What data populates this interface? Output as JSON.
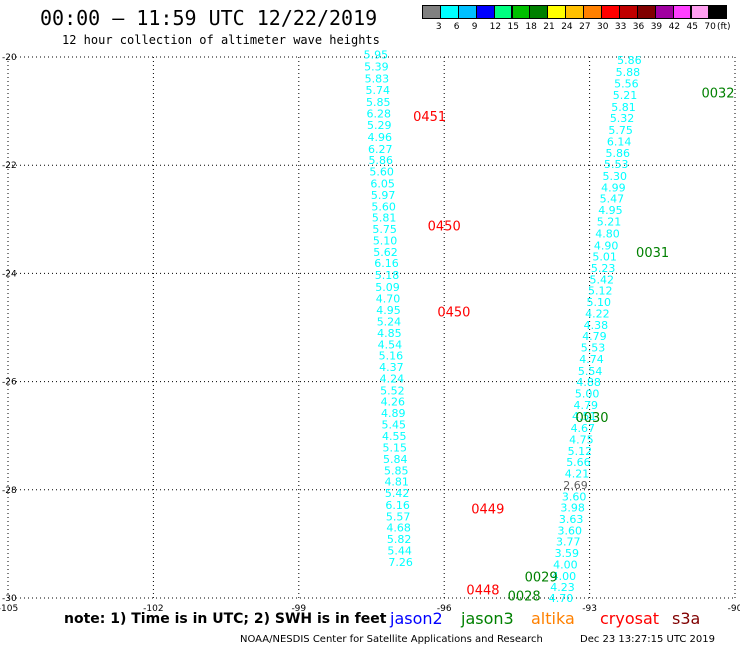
{
  "header": {
    "title": "00:00 – 11:59 UTC 12/22/2019",
    "subtitle": "12 hour collection of altimeter wave heights"
  },
  "color_scale": {
    "labels": [
      "3",
      "6",
      "9",
      "12",
      "15",
      "18",
      "21",
      "24",
      "27",
      "30",
      "33",
      "36",
      "39",
      "42",
      "45",
      "70"
    ],
    "unit": "(ft)",
    "colors": [
      "#808080",
      "#00ffff",
      "#00c0ff",
      "#0000ff",
      "#00ff80",
      "#00c000",
      "#008000",
      "#ffff00",
      "#ffc000",
      "#ff8000",
      "#ff0000",
      "#c00000",
      "#800000",
      "#a000a0",
      "#ff40ff",
      "#ff9ef0",
      "#000000"
    ]
  },
  "footer": {
    "note": "note: 1) Time is in UTC; 2) SWH is in feet",
    "satellites": [
      {
        "name": "jason2",
        "color": "#0000ff"
      },
      {
        "name": "jason3",
        "color": "#008000"
      },
      {
        "name": "altika",
        "color": "#ff8000"
      },
      {
        "name": "cryosat",
        "color": "#ff0000"
      },
      {
        "name": "s3a",
        "color": "#800000"
      }
    ],
    "credit": "NOAA/NESDIS Center for Satellite Applications and Research",
    "stamp": "Dec 23 13:27:15 UTC 2019"
  },
  "chart_data": {
    "type": "scatter",
    "xlim": [
      -105,
      -90
    ],
    "ylim": [
      -30,
      -20
    ],
    "x_ticks": [
      -105,
      -102,
      -99,
      -96,
      -93,
      -90
    ],
    "y_ticks": [
      -20,
      -22,
      -24,
      -26,
      -28,
      -30
    ],
    "x_tick_labels": [
      "-105",
      "-102",
      "-99",
      "-96",
      "-93",
      "-90"
    ],
    "y_tick_labels": [
      "-20",
      "-22",
      "-24",
      "-26",
      "-28",
      "-30"
    ],
    "grid": "dotted",
    "tracks": [
      {
        "color": "#00ffff",
        "points": [
          {
            "lon": -97.41,
            "lat": -19.95,
            "v": "5.95"
          },
          {
            "lon": -97.4,
            "lat": -20.18,
            "v": "5.39"
          },
          {
            "lon": -97.39,
            "lat": -20.4,
            "v": "5.83"
          },
          {
            "lon": -97.37,
            "lat": -20.61,
            "v": "5.74"
          },
          {
            "lon": -97.36,
            "lat": -20.83,
            "v": "5.85"
          },
          {
            "lon": -97.35,
            "lat": -21.04,
            "v": "6.28"
          },
          {
            "lon": -97.34,
            "lat": -21.26,
            "v": "5.29"
          },
          {
            "lon": -97.33,
            "lat": -21.48,
            "v": "4.96"
          },
          {
            "lon": -97.32,
            "lat": -21.7,
            "v": "6.27"
          },
          {
            "lon": -97.31,
            "lat": -21.9,
            "v": "5.86"
          },
          {
            "lon": -97.29,
            "lat": -22.12,
            "v": "5.60"
          },
          {
            "lon": -97.27,
            "lat": -22.34,
            "v": "6.05"
          },
          {
            "lon": -97.26,
            "lat": -22.55,
            "v": "5.97"
          },
          {
            "lon": -97.25,
            "lat": -22.76,
            "v": "5.60"
          },
          {
            "lon": -97.24,
            "lat": -22.97,
            "v": "5.81"
          },
          {
            "lon": -97.23,
            "lat": -23.18,
            "v": "5.75"
          },
          {
            "lon": -97.22,
            "lat": -23.39,
            "v": "5.10"
          },
          {
            "lon": -97.21,
            "lat": -23.6,
            "v": "5.62"
          },
          {
            "lon": -97.19,
            "lat": -23.81,
            "v": "6.16"
          },
          {
            "lon": -97.18,
            "lat": -24.03,
            "v": "5.18"
          },
          {
            "lon": -97.17,
            "lat": -24.25,
            "v": "5.09"
          },
          {
            "lon": -97.16,
            "lat": -24.46,
            "v": "4.70"
          },
          {
            "lon": -97.15,
            "lat": -24.68,
            "v": "4.95"
          },
          {
            "lon": -97.14,
            "lat": -24.89,
            "v": "5.24"
          },
          {
            "lon": -97.13,
            "lat": -25.1,
            "v": "4.85"
          },
          {
            "lon": -97.12,
            "lat": -25.31,
            "v": "4.54"
          },
          {
            "lon": -97.1,
            "lat": -25.52,
            "v": "5.16"
          },
          {
            "lon": -97.09,
            "lat": -25.73,
            "v": "4.37"
          },
          {
            "lon": -97.08,
            "lat": -25.94,
            "v": "4.24"
          },
          {
            "lon": -97.07,
            "lat": -26.16,
            "v": "5.52"
          },
          {
            "lon": -97.06,
            "lat": -26.37,
            "v": "4.26"
          },
          {
            "lon": -97.05,
            "lat": -26.58,
            "v": "4.89"
          },
          {
            "lon": -97.04,
            "lat": -26.79,
            "v": "5.45"
          },
          {
            "lon": -97.03,
            "lat": -27.01,
            "v": "4.55"
          },
          {
            "lon": -97.02,
            "lat": -27.22,
            "v": "5.15"
          },
          {
            "lon": -97.01,
            "lat": -27.43,
            "v": "5.84"
          },
          {
            "lon": -96.99,
            "lat": -27.64,
            "v": "5.85"
          },
          {
            "lon": -96.98,
            "lat": -27.85,
            "v": "4.81"
          },
          {
            "lon": -96.97,
            "lat": -28.06,
            "v": "5.42"
          },
          {
            "lon": -96.96,
            "lat": -28.28,
            "v": "6.16"
          },
          {
            "lon": -96.95,
            "lat": -28.49,
            "v": "5.57"
          },
          {
            "lon": -96.94,
            "lat": -28.7,
            "v": "4.68"
          },
          {
            "lon": -96.93,
            "lat": -28.91,
            "v": "5.82"
          },
          {
            "lon": -96.92,
            "lat": -29.12,
            "v": "5.44"
          },
          {
            "lon": -96.9,
            "lat": -29.33,
            "v": "7.26"
          }
        ]
      },
      {
        "color": "#00ffff",
        "points": [
          {
            "lon": -92.18,
            "lat": -20.06,
            "v": "5.86"
          },
          {
            "lon": -92.21,
            "lat": -20.28,
            "v": "5.88"
          },
          {
            "lon": -92.24,
            "lat": -20.49,
            "v": "5.56"
          },
          {
            "lon": -92.27,
            "lat": -20.7,
            "v": "5.21"
          },
          {
            "lon": -92.3,
            "lat": -20.92,
            "v": "5.81"
          },
          {
            "lon": -92.33,
            "lat": -21.13,
            "v": "5.32"
          },
          {
            "lon": -92.36,
            "lat": -21.35,
            "v": "5.75"
          },
          {
            "lon": -92.39,
            "lat": -21.56,
            "v": "6.14"
          },
          {
            "lon": -92.42,
            "lat": -21.77,
            "v": "5.86"
          },
          {
            "lon": -92.45,
            "lat": -21.98,
            "v": "5.53"
          },
          {
            "lon": -92.48,
            "lat": -22.2,
            "v": "5.30"
          },
          {
            "lon": -92.51,
            "lat": -22.41,
            "v": "4.99"
          },
          {
            "lon": -92.54,
            "lat": -22.62,
            "v": "5.47"
          },
          {
            "lon": -92.57,
            "lat": -22.83,
            "v": "4.95"
          },
          {
            "lon": -92.6,
            "lat": -23.04,
            "v": "5.21"
          },
          {
            "lon": -92.63,
            "lat": -23.26,
            "v": "4.80"
          },
          {
            "lon": -92.66,
            "lat": -23.48,
            "v": "4.90"
          },
          {
            "lon": -92.69,
            "lat": -23.69,
            "v": "5.01"
          },
          {
            "lon": -92.72,
            "lat": -23.9,
            "v": "5.23"
          },
          {
            "lon": -92.75,
            "lat": -24.11,
            "v": "5.42"
          },
          {
            "lon": -92.78,
            "lat": -24.32,
            "v": "5.12"
          },
          {
            "lon": -92.81,
            "lat": -24.53,
            "v": "5.10"
          },
          {
            "lon": -92.84,
            "lat": -24.74,
            "v": "4.22"
          },
          {
            "lon": -92.87,
            "lat": -24.95,
            "v": "4.38"
          },
          {
            "lon": -92.9,
            "lat": -25.16,
            "v": "4.79"
          },
          {
            "lon": -92.93,
            "lat": -25.37,
            "v": "5.53"
          },
          {
            "lon": -92.96,
            "lat": -25.58,
            "v": "4.74"
          },
          {
            "lon": -92.99,
            "lat": -25.8,
            "v": "5.54"
          },
          {
            "lon": -93.02,
            "lat": -26.01,
            "v": "4.88"
          },
          {
            "lon": -93.05,
            "lat": -26.22,
            "v": "5.00"
          },
          {
            "lon": -93.08,
            "lat": -26.43,
            "v": "4.79"
          },
          {
            "lon": -93.11,
            "lat": -26.64,
            "v": "4.51"
          },
          {
            "lon": -93.14,
            "lat": -26.86,
            "v": "4.67"
          },
          {
            "lon": -93.17,
            "lat": -27.07,
            "v": "4.75"
          },
          {
            "lon": -93.2,
            "lat": -27.28,
            "v": "5.12"
          },
          {
            "lon": -93.23,
            "lat": -27.49,
            "v": "5.66"
          },
          {
            "lon": -93.26,
            "lat": -27.7,
            "v": "4.21"
          },
          {
            "lon": -93.29,
            "lat": -27.91,
            "v": "2.69"
          },
          {
            "lon": -93.32,
            "lat": -28.12,
            "v": "3.60"
          },
          {
            "lon": -93.35,
            "lat": -28.33,
            "v": "3.98"
          },
          {
            "lon": -93.38,
            "lat": -28.54,
            "v": "3.63"
          },
          {
            "lon": -93.41,
            "lat": -28.75,
            "v": "3.60"
          },
          {
            "lon": -93.44,
            "lat": -28.96,
            "v": "3.77"
          },
          {
            "lon": -93.47,
            "lat": -29.17,
            "v": "3.59"
          },
          {
            "lon": -93.5,
            "lat": -29.38,
            "v": "4.00"
          },
          {
            "lon": -93.53,
            "lat": -29.59,
            "v": "4.00"
          },
          {
            "lon": -93.56,
            "lat": -29.8,
            "v": "4.23"
          },
          {
            "lon": -93.59,
            "lat": -30.0,
            "v": "4.70"
          },
          {
            "lon": -93.62,
            "lat": -30.21,
            "v": "4.84"
          }
        ]
      }
    ],
    "time_labels": [
      {
        "lon": -96.3,
        "lat": -21.09,
        "text": "0451",
        "color": "#ff0000"
      },
      {
        "lon": -96.0,
        "lat": -23.11,
        "text": "0450",
        "color": "#ff0000"
      },
      {
        "lon": -95.8,
        "lat": -24.7,
        "text": "0450",
        "color": "#ff0000"
      },
      {
        "lon": -95.1,
        "lat": -28.35,
        "text": "0449",
        "color": "#ff0000"
      },
      {
        "lon": -95.2,
        "lat": -29.84,
        "text": "0448",
        "color": "#ff0000"
      },
      {
        "lon": -90.35,
        "lat": -20.66,
        "text": "0032",
        "color": "#008000"
      },
      {
        "lon": -91.7,
        "lat": -23.6,
        "text": "0031",
        "color": "#008000"
      },
      {
        "lon": -92.95,
        "lat": -26.65,
        "text": "0030",
        "color": "#008000"
      },
      {
        "lon": -94.0,
        "lat": -29.6,
        "text": "0029",
        "color": "#008000"
      },
      {
        "lon": -94.35,
        "lat": -29.95,
        "text": "0028",
        "color": "#008000"
      }
    ]
  }
}
